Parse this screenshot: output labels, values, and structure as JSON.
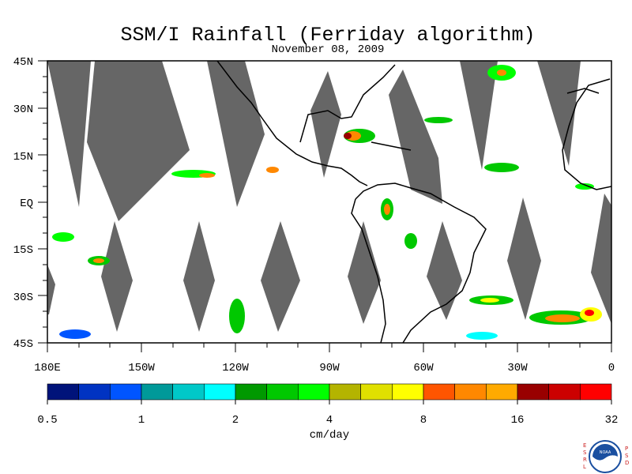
{
  "title": "SSM/I Rainfall (Ferriday algorithm)",
  "date": "November 08, 2009",
  "lat_labels": [
    "45N",
    "30N",
    "15N",
    "EQ",
    "15S",
    "30S",
    "45S"
  ],
  "lon_labels": [
    "180E",
    "150W",
    "120W",
    "90W",
    "60W",
    "30W",
    "0"
  ],
  "colorbar": {
    "unit": "cm/day",
    "tick_labels": [
      "0.5",
      "1",
      "2",
      "4",
      "8",
      "16",
      "32"
    ],
    "colors": [
      "#00137a",
      "#0033c2",
      "#0055ff",
      "#009999",
      "#00c8c8",
      "#00ffff",
      "#009900",
      "#00c800",
      "#00ff00",
      "#b4b400",
      "#e0e000",
      "#ffff00",
      "#ff5500",
      "#ff8800",
      "#ffaa00",
      "#990000",
      "#cc0000",
      "#ff0000"
    ]
  },
  "map_colors": {
    "no_data": "#666666",
    "coast": "#000000",
    "background": "#ffffff"
  },
  "logo": {
    "left_text": "ESRL",
    "right_text": "PSD",
    "emblem": "NOAA"
  }
}
